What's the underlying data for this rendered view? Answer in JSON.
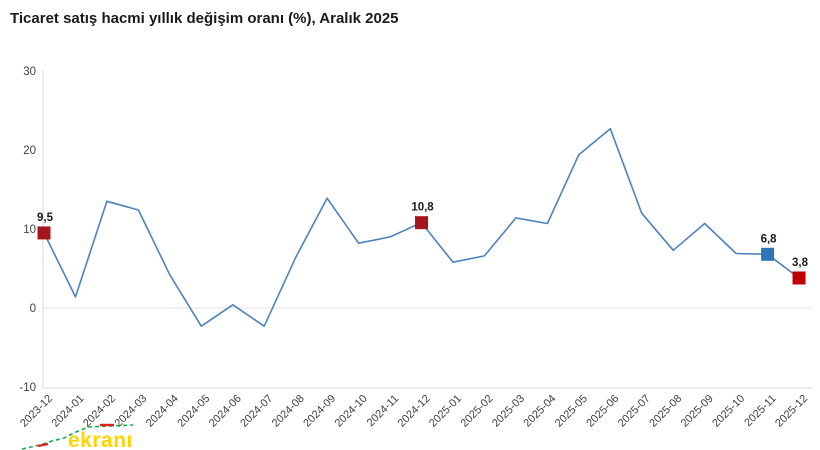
{
  "title": "Ticaret satış hacmi yıllık değişim oranı (%), Aralık 2025",
  "watermark": {
    "text": "ekranı",
    "color": "#ffd400"
  },
  "colors": {
    "line": "#4e82bd",
    "axis": "#d9d9d9",
    "gridline": "#e3e3e3",
    "tick_text": "#404040",
    "label_text": "#1a1a1a",
    "marker_darkred": "#a5161c",
    "marker_red": "#c00000",
    "marker_blue": "#2e75b6",
    "watermark_green": "#18b04b",
    "watermark_red": "#e02020"
  },
  "chart_data": {
    "type": "line",
    "title": "Ticaret satış hacmi yıllık değişim oranı (%), Aralık 2025",
    "categories": [
      "2023-12",
      "2024-01",
      "2024-02",
      "2024-03",
      "2024-04",
      "2024-05",
      "2024-06",
      "2024-07",
      "2024-08",
      "2024-09",
      "2024-10",
      "2024-11",
      "2024-12",
      "2025-01",
      "2025-02",
      "2025-03",
      "2025-04",
      "2025-05",
      "2025-06",
      "2025-07",
      "2025-08",
      "2025-09",
      "2025-10",
      "2025-11",
      "2025-12"
    ],
    "values": [
      9.5,
      1.4,
      13.5,
      12.4,
      4.2,
      -2.3,
      0.4,
      -2.3,
      6.4,
      13.9,
      8.2,
      9.0,
      10.8,
      5.8,
      6.6,
      11.4,
      10.7,
      19.4,
      22.7,
      12.0,
      7.3,
      10.7,
      6.9,
      6.8,
      3.8
    ],
    "y_ticks": [
      30,
      20,
      10,
      0,
      -10
    ],
    "ylim": [
      -10,
      30
    ],
    "grid": "zero-and-bottom-lines-only",
    "legend": "none",
    "annotations": [
      {
        "index": 0,
        "label": "9,5",
        "marker": "square",
        "color_key": "marker_darkred"
      },
      {
        "index": 12,
        "label": "10,8",
        "marker": "square",
        "color_key": "marker_darkred"
      },
      {
        "index": 23,
        "label": "6,8",
        "marker": "square",
        "color_key": "marker_blue"
      },
      {
        "index": 24,
        "label": "3,8",
        "marker": "square",
        "color_key": "marker_red"
      }
    ]
  }
}
